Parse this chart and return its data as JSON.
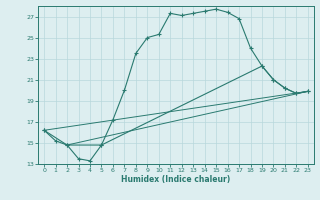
{
  "xlabel": "Humidex (Indice chaleur)",
  "background_color": "#ddeef0",
  "grid_color": "#b8d8dc",
  "line_color": "#2a7a70",
  "xlim": [
    -0.5,
    23.5
  ],
  "ylim": [
    13.0,
    28.0
  ],
  "xticks": [
    0,
    1,
    2,
    3,
    4,
    5,
    6,
    7,
    8,
    9,
    10,
    11,
    12,
    13,
    14,
    15,
    16,
    17,
    18,
    19,
    20,
    21,
    22,
    23
  ],
  "yticks": [
    13,
    15,
    17,
    19,
    21,
    23,
    25,
    27
  ],
  "line1_x": [
    0,
    1,
    2,
    3,
    4,
    5,
    6,
    7,
    8,
    9,
    10,
    11,
    12,
    13,
    14,
    15,
    16,
    17,
    18,
    19,
    20,
    21,
    22,
    23
  ],
  "line1_y": [
    16.2,
    15.2,
    14.8,
    13.5,
    13.3,
    14.8,
    17.2,
    20.0,
    23.5,
    25.0,
    25.3,
    27.3,
    27.1,
    27.3,
    27.5,
    27.7,
    27.4,
    26.8,
    24.0,
    22.3,
    21.0,
    20.2,
    19.7,
    19.9
  ],
  "line2_x": [
    0,
    2,
    5,
    19,
    20,
    21,
    22,
    23
  ],
  "line2_y": [
    16.2,
    14.8,
    14.8,
    22.3,
    21.0,
    20.2,
    19.7,
    19.9
  ],
  "line3_x": [
    0,
    23
  ],
  "line3_y": [
    16.2,
    19.9
  ],
  "line4_x": [
    2,
    23
  ],
  "line4_y": [
    14.8,
    19.9
  ]
}
